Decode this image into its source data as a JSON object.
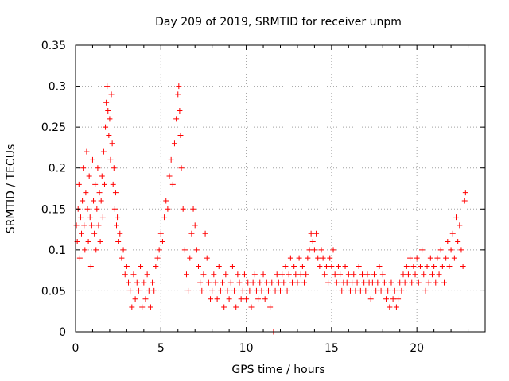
{
  "chart_data": {
    "type": "scatter",
    "title": "Day 209 of 2019, SRMTID for receiver unpm",
    "xlabel": "GPS time / hours",
    "ylabel": "SRMTID / TECUs",
    "xlim": [
      0,
      24
    ],
    "ylim": [
      0,
      0.35
    ],
    "xticks": [
      0,
      5,
      10,
      15,
      20
    ],
    "yticks": [
      0,
      0.05,
      0.1,
      0.15,
      0.2,
      0.25,
      0.3,
      0.35
    ],
    "xtick_labels": [
      "0",
      "5",
      "10",
      "15",
      "20"
    ],
    "ytick_labels": [
      "0",
      "0.05",
      "0.1",
      "0.15",
      "0.2",
      "0.25",
      "0.3",
      "0.35"
    ],
    "grid": true,
    "marker": "+",
    "series": [
      {
        "name": "SRMTID",
        "color": "#ff0000",
        "points": [
          [
            0.05,
            0.13
          ],
          [
            0.1,
            0.11
          ],
          [
            0.15,
            0.15
          ],
          [
            0.2,
            0.18
          ],
          [
            0.25,
            0.09
          ],
          [
            0.3,
            0.14
          ],
          [
            0.35,
            0.12
          ],
          [
            0.4,
            0.16
          ],
          [
            0.45,
            0.2
          ],
          [
            0.5,
            0.13
          ],
          [
            0.55,
            0.1
          ],
          [
            0.6,
            0.17
          ],
          [
            0.65,
            0.22
          ],
          [
            0.7,
            0.15
          ],
          [
            0.75,
            0.11
          ],
          [
            0.8,
            0.19
          ],
          [
            0.85,
            0.14
          ],
          [
            0.9,
            0.08
          ],
          [
            0.95,
            0.13
          ],
          [
            1.0,
            0.21
          ],
          [
            1.05,
            0.16
          ],
          [
            1.1,
            0.12
          ],
          [
            1.15,
            0.18
          ],
          [
            1.2,
            0.1
          ],
          [
            1.25,
            0.15
          ],
          [
            1.3,
            0.2
          ],
          [
            1.35,
            0.13
          ],
          [
            1.4,
            0.17
          ],
          [
            1.45,
            0.11
          ],
          [
            1.5,
            0.16
          ],
          [
            1.55,
            0.19
          ],
          [
            1.6,
            0.14
          ],
          [
            1.65,
            0.22
          ],
          [
            1.7,
            0.18
          ],
          [
            1.75,
            0.25
          ],
          [
            1.8,
            0.28
          ],
          [
            1.85,
            0.3
          ],
          [
            1.9,
            0.27
          ],
          [
            1.95,
            0.24
          ],
          [
            2.0,
            0.26
          ],
          [
            2.05,
            0.21
          ],
          [
            2.1,
            0.29
          ],
          [
            2.15,
            0.23
          ],
          [
            2.2,
            0.18
          ],
          [
            2.25,
            0.2
          ],
          [
            2.3,
            0.15
          ],
          [
            2.35,
            0.17
          ],
          [
            2.4,
            0.13
          ],
          [
            2.45,
            0.14
          ],
          [
            2.5,
            0.11
          ],
          [
            2.6,
            0.12
          ],
          [
            2.7,
            0.09
          ],
          [
            2.8,
            0.1
          ],
          [
            2.9,
            0.07
          ],
          [
            3.0,
            0.08
          ],
          [
            3.1,
            0.06
          ],
          [
            3.2,
            0.05
          ],
          [
            3.3,
            0.03
          ],
          [
            3.4,
            0.07
          ],
          [
            3.5,
            0.04
          ],
          [
            3.6,
            0.06
          ],
          [
            3.7,
            0.05
          ],
          [
            3.8,
            0.08
          ],
          [
            3.9,
            0.03
          ],
          [
            4.0,
            0.06
          ],
          [
            4.1,
            0.04
          ],
          [
            4.2,
            0.07
          ],
          [
            4.3,
            0.05
          ],
          [
            4.4,
            0.03
          ],
          [
            4.5,
            0.06
          ],
          [
            4.6,
            0.05
          ],
          [
            4.7,
            0.08
          ],
          [
            4.8,
            0.09
          ],
          [
            4.9,
            0.1
          ],
          [
            5.0,
            0.12
          ],
          [
            5.1,
            0.11
          ],
          [
            5.2,
            0.14
          ],
          [
            5.3,
            0.16
          ],
          [
            5.4,
            0.15
          ],
          [
            5.5,
            0.19
          ],
          [
            5.6,
            0.21
          ],
          [
            5.7,
            0.18
          ],
          [
            5.8,
            0.23
          ],
          [
            5.9,
            0.26
          ],
          [
            6.0,
            0.29
          ],
          [
            6.05,
            0.3
          ],
          [
            6.1,
            0.27
          ],
          [
            6.15,
            0.24
          ],
          [
            6.2,
            0.2
          ],
          [
            6.3,
            0.15
          ],
          [
            6.4,
            0.1
          ],
          [
            6.5,
            0.07
          ],
          [
            6.6,
            0.05
          ],
          [
            6.7,
            0.09
          ],
          [
            6.8,
            0.12
          ],
          [
            6.9,
            0.15
          ],
          [
            7.0,
            0.13
          ],
          [
            7.1,
            0.1
          ],
          [
            7.2,
            0.08
          ],
          [
            7.3,
            0.06
          ],
          [
            7.4,
            0.05
          ],
          [
            7.5,
            0.07
          ],
          [
            7.6,
            0.12
          ],
          [
            7.7,
            0.09
          ],
          [
            7.8,
            0.06
          ],
          [
            7.9,
            0.04
          ],
          [
            8.0,
            0.05
          ],
          [
            8.1,
            0.07
          ],
          [
            8.2,
            0.06
          ],
          [
            8.3,
            0.04
          ],
          [
            8.4,
            0.08
          ],
          [
            8.5,
            0.05
          ],
          [
            8.6,
            0.06
          ],
          [
            8.7,
            0.03
          ],
          [
            8.8,
            0.07
          ],
          [
            8.9,
            0.05
          ],
          [
            9.0,
            0.04
          ],
          [
            9.1,
            0.06
          ],
          [
            9.2,
            0.08
          ],
          [
            9.3,
            0.05
          ],
          [
            9.4,
            0.03
          ],
          [
            9.5,
            0.07
          ],
          [
            9.6,
            0.06
          ],
          [
            9.7,
            0.04
          ],
          [
            9.8,
            0.05
          ],
          [
            9.9,
            0.07
          ],
          [
            10.0,
            0.04
          ],
          [
            10.1,
            0.06
          ],
          [
            10.2,
            0.05
          ],
          [
            10.3,
            0.03
          ],
          [
            10.4,
            0.06
          ],
          [
            10.5,
            0.07
          ],
          [
            10.6,
            0.05
          ],
          [
            10.7,
            0.04
          ],
          [
            10.8,
            0.06
          ],
          [
            10.9,
            0.05
          ],
          [
            11.0,
            0.07
          ],
          [
            11.1,
            0.04
          ],
          [
            11.2,
            0.06
          ],
          [
            11.3,
            0.05
          ],
          [
            11.4,
            0.03
          ],
          [
            11.5,
            0.06
          ],
          [
            11.6,
            0.0
          ],
          [
            11.7,
            0.05
          ],
          [
            11.8,
            0.07
          ],
          [
            11.9,
            0.06
          ],
          [
            12.0,
            0.05
          ],
          [
            12.1,
            0.07
          ],
          [
            12.2,
            0.06
          ],
          [
            12.3,
            0.08
          ],
          [
            12.4,
            0.05
          ],
          [
            12.5,
            0.07
          ],
          [
            12.6,
            0.09
          ],
          [
            12.7,
            0.06
          ],
          [
            12.8,
            0.08
          ],
          [
            12.9,
            0.07
          ],
          [
            13.0,
            0.06
          ],
          [
            13.1,
            0.09
          ],
          [
            13.2,
            0.07
          ],
          [
            13.3,
            0.08
          ],
          [
            13.4,
            0.06
          ],
          [
            13.5,
            0.07
          ],
          [
            13.6,
            0.09
          ],
          [
            13.7,
            0.1
          ],
          [
            13.8,
            0.12
          ],
          [
            13.9,
            0.11
          ],
          [
            14.0,
            0.1
          ],
          [
            14.1,
            0.12
          ],
          [
            14.2,
            0.09
          ],
          [
            14.3,
            0.08
          ],
          [
            14.4,
            0.1
          ],
          [
            14.5,
            0.09
          ],
          [
            14.6,
            0.07
          ],
          [
            14.7,
            0.08
          ],
          [
            14.8,
            0.06
          ],
          [
            14.9,
            0.09
          ],
          [
            15.0,
            0.08
          ],
          [
            15.1,
            0.1
          ],
          [
            15.2,
            0.07
          ],
          [
            15.3,
            0.06
          ],
          [
            15.4,
            0.08
          ],
          [
            15.5,
            0.07
          ],
          [
            15.6,
            0.05
          ],
          [
            15.7,
            0.06
          ],
          [
            15.8,
            0.08
          ],
          [
            15.9,
            0.06
          ],
          [
            16.0,
            0.07
          ],
          [
            16.1,
            0.05
          ],
          [
            16.2,
            0.06
          ],
          [
            16.3,
            0.07
          ],
          [
            16.4,
            0.05
          ],
          [
            16.5,
            0.06
          ],
          [
            16.6,
            0.08
          ],
          [
            16.7,
            0.05
          ],
          [
            16.8,
            0.07
          ],
          [
            16.9,
            0.06
          ],
          [
            17.0,
            0.05
          ],
          [
            17.1,
            0.07
          ],
          [
            17.2,
            0.06
          ],
          [
            17.3,
            0.04
          ],
          [
            17.4,
            0.06
          ],
          [
            17.5,
            0.07
          ],
          [
            17.6,
            0.05
          ],
          [
            17.7,
            0.06
          ],
          [
            17.8,
            0.08
          ],
          [
            17.9,
            0.05
          ],
          [
            18.0,
            0.07
          ],
          [
            18.1,
            0.06
          ],
          [
            18.2,
            0.04
          ],
          [
            18.3,
            0.05
          ],
          [
            18.4,
            0.03
          ],
          [
            18.5,
            0.06
          ],
          [
            18.6,
            0.04
          ],
          [
            18.7,
            0.05
          ],
          [
            18.8,
            0.03
          ],
          [
            18.9,
            0.04
          ],
          [
            19.0,
            0.06
          ],
          [
            19.1,
            0.05
          ],
          [
            19.2,
            0.07
          ],
          [
            19.3,
            0.06
          ],
          [
            19.4,
            0.08
          ],
          [
            19.5,
            0.07
          ],
          [
            19.6,
            0.09
          ],
          [
            19.7,
            0.06
          ],
          [
            19.8,
            0.08
          ],
          [
            19.9,
            0.07
          ],
          [
            20.0,
            0.09
          ],
          [
            20.1,
            0.06
          ],
          [
            20.2,
            0.08
          ],
          [
            20.3,
            0.1
          ],
          [
            20.4,
            0.07
          ],
          [
            20.5,
            0.05
          ],
          [
            20.6,
            0.08
          ],
          [
            20.7,
            0.06
          ],
          [
            20.8,
            0.09
          ],
          [
            20.9,
            0.07
          ],
          [
            21.0,
            0.08
          ],
          [
            21.1,
            0.06
          ],
          [
            21.2,
            0.09
          ],
          [
            21.3,
            0.07
          ],
          [
            21.4,
            0.1
          ],
          [
            21.5,
            0.08
          ],
          [
            21.6,
            0.06
          ],
          [
            21.7,
            0.09
          ],
          [
            21.8,
            0.11
          ],
          [
            21.9,
            0.08
          ],
          [
            22.0,
            0.1
          ],
          [
            22.1,
            0.12
          ],
          [
            22.2,
            0.09
          ],
          [
            22.3,
            0.14
          ],
          [
            22.4,
            0.11
          ],
          [
            22.5,
            0.13
          ],
          [
            22.6,
            0.1
          ],
          [
            22.7,
            0.08
          ],
          [
            22.8,
            0.16
          ],
          [
            22.85,
            0.17
          ]
        ]
      }
    ]
  }
}
